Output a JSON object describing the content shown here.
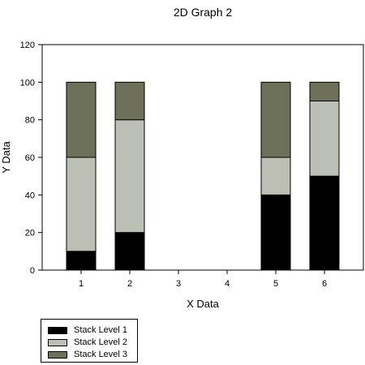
{
  "chart_data": {
    "type": "bar",
    "stacked": true,
    "title": "2D Graph 2",
    "xlabel": "X Data",
    "ylabel": "Y Data",
    "categories": [
      "1",
      "2",
      "3",
      "4",
      "5",
      "6"
    ],
    "ylim": [
      0,
      120
    ],
    "yticks": [
      "0",
      "20",
      "40",
      "60",
      "80",
      "100",
      "120"
    ],
    "grid": false,
    "legend_position": "bottom-left",
    "series": [
      {
        "name": "Stack Level 1",
        "color": "#000000",
        "values": [
          10,
          20,
          null,
          null,
          40,
          50
        ]
      },
      {
        "name": "Stack Level 2",
        "color": "#bcbfb3",
        "values": [
          50,
          60,
          null,
          null,
          20,
          40
        ]
      },
      {
        "name": "Stack Level 3",
        "color": "#6e705a",
        "values": [
          40,
          20,
          null,
          null,
          40,
          10
        ]
      }
    ]
  }
}
